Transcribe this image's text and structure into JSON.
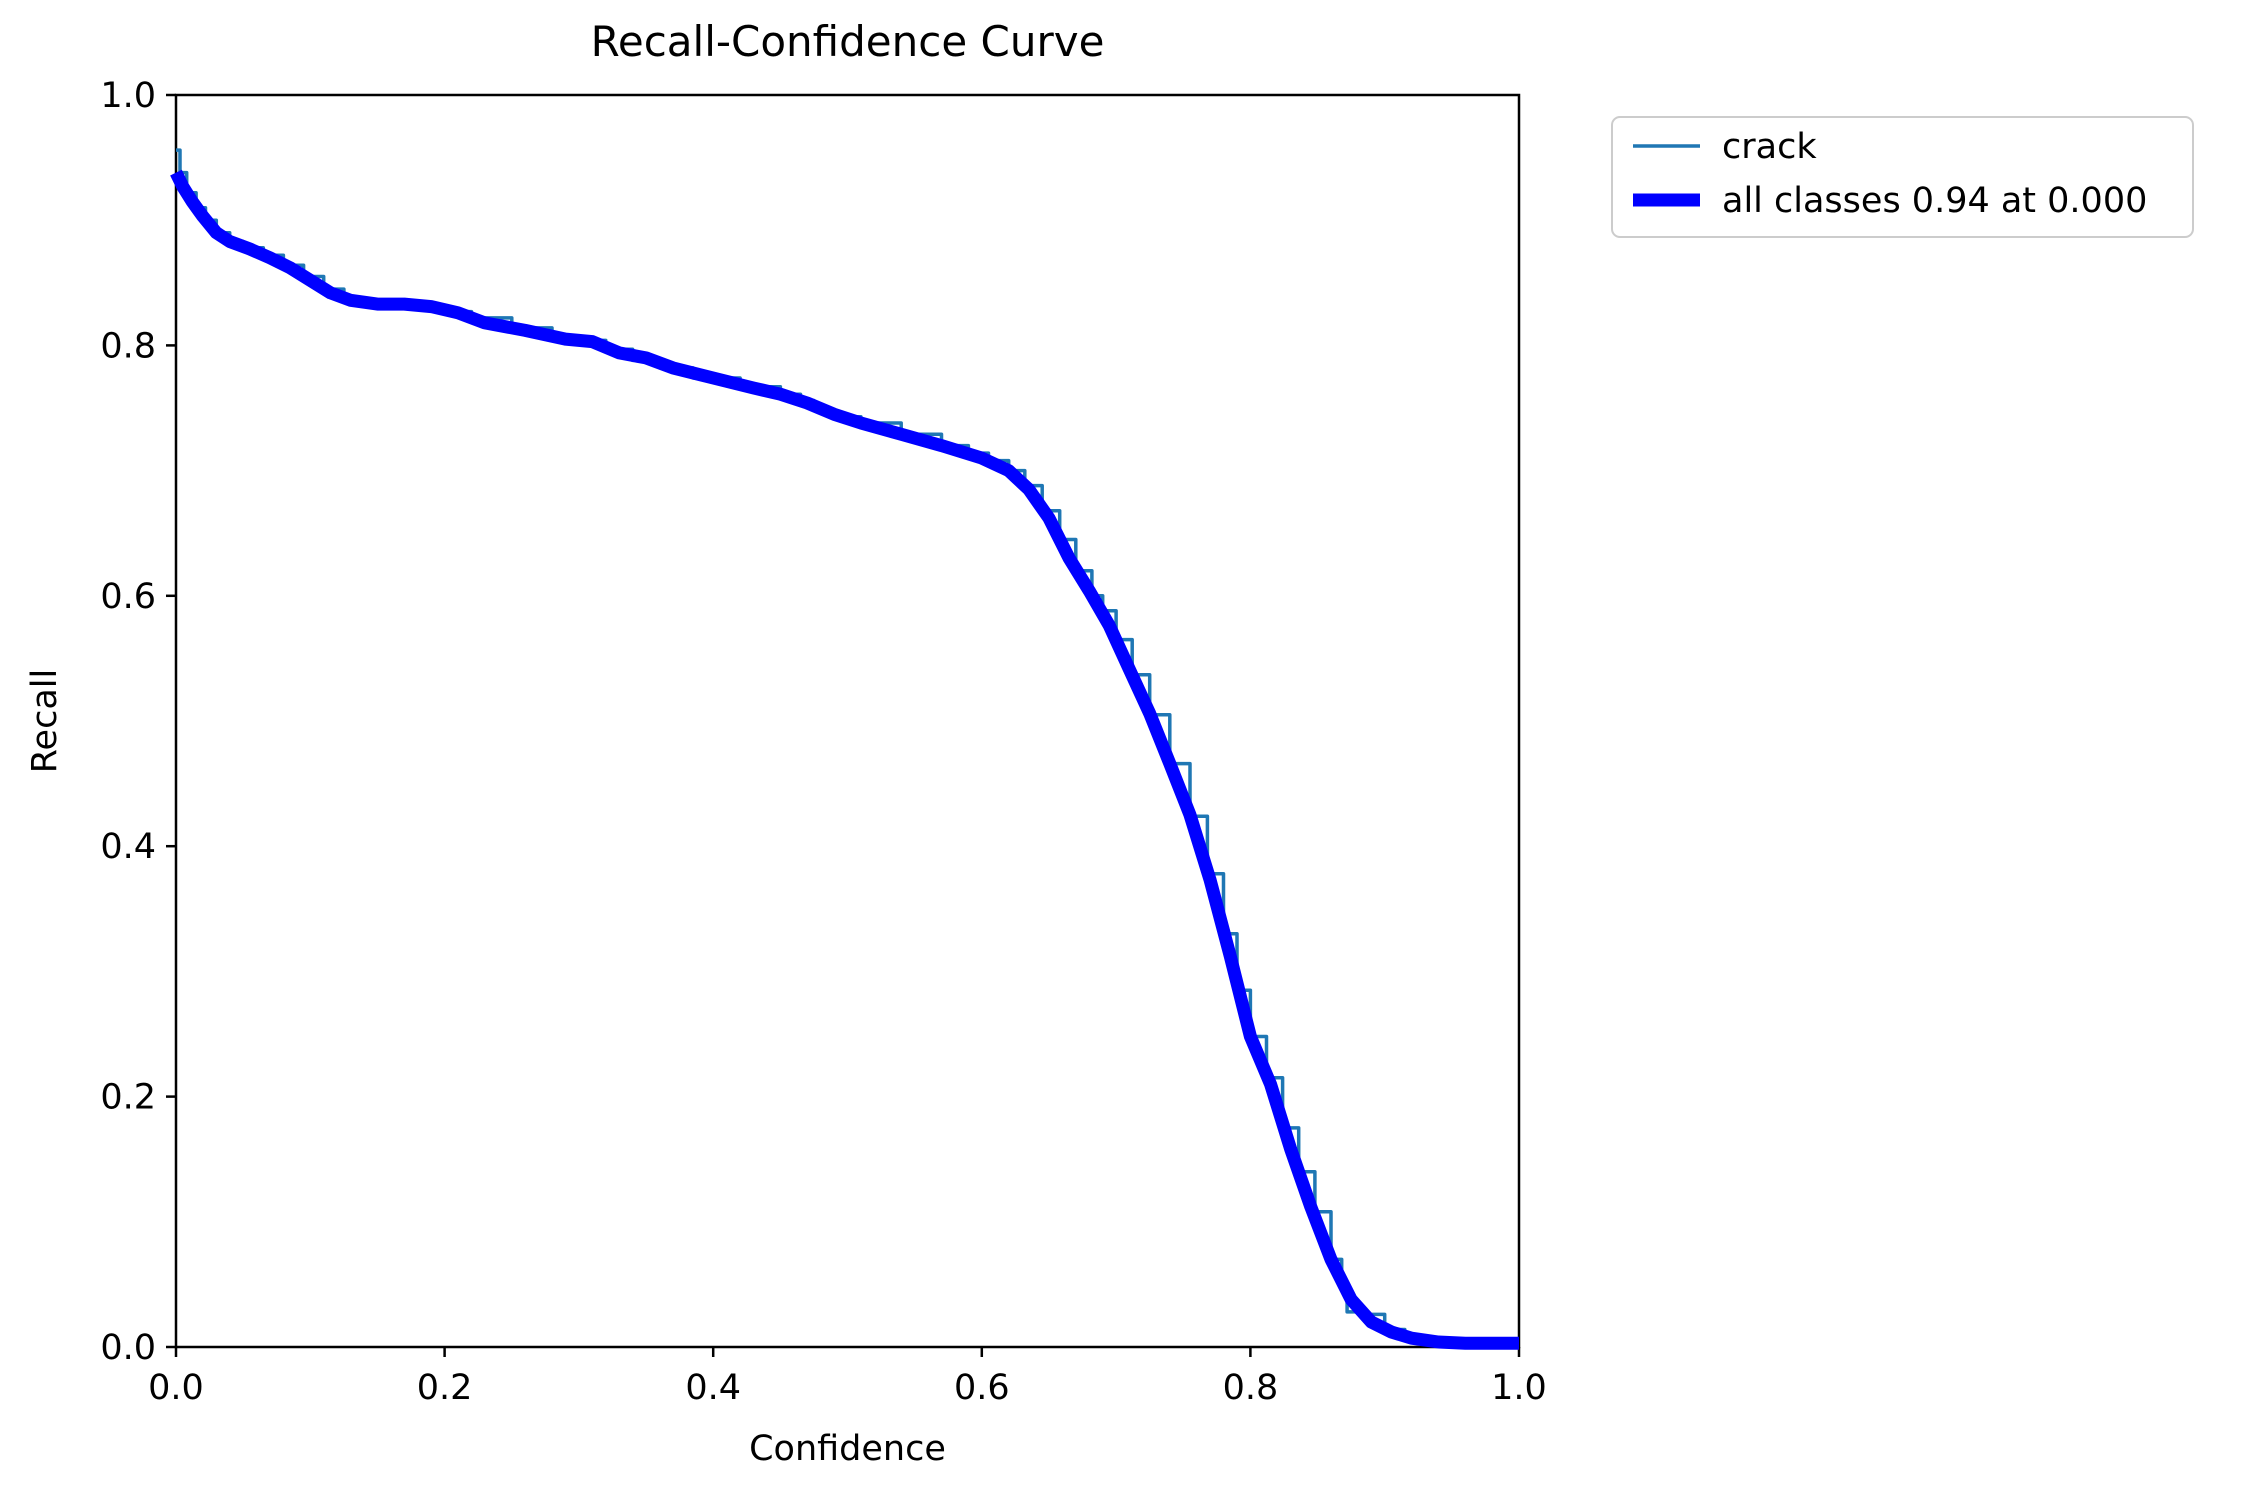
{
  "chart_data": {
    "type": "line",
    "title": "Recall-Confidence Curve",
    "xlabel": "Confidence",
    "ylabel": "Recall",
    "xlim": [
      0.0,
      1.0
    ],
    "ylim": [
      0.0,
      1.0
    ],
    "xticks": [
      "0.0",
      "0.2",
      "0.4",
      "0.6",
      "0.8",
      "1.0"
    ],
    "yticks": [
      "0.0",
      "0.2",
      "0.4",
      "0.6",
      "0.8",
      "1.0"
    ],
    "grid": false,
    "legend_position": "upper-right-outside",
    "series": [
      {
        "name": "crack",
        "color": "#1f77b4",
        "linewidth": 3.5,
        "style": "steps",
        "points": [
          [
            0.0,
            0.956
          ],
          [
            0.003,
            0.938
          ],
          [
            0.008,
            0.922
          ],
          [
            0.015,
            0.91
          ],
          [
            0.022,
            0.9
          ],
          [
            0.03,
            0.89
          ],
          [
            0.04,
            0.883
          ],
          [
            0.05,
            0.878
          ],
          [
            0.065,
            0.872
          ],
          [
            0.08,
            0.864
          ],
          [
            0.095,
            0.855
          ],
          [
            0.11,
            0.845
          ],
          [
            0.125,
            0.838
          ],
          [
            0.14,
            0.834
          ],
          [
            0.16,
            0.833
          ],
          [
            0.18,
            0.832
          ],
          [
            0.2,
            0.827
          ],
          [
            0.22,
            0.822
          ],
          [
            0.25,
            0.814
          ],
          [
            0.28,
            0.807
          ],
          [
            0.3,
            0.804
          ],
          [
            0.32,
            0.797
          ],
          [
            0.34,
            0.788
          ],
          [
            0.36,
            0.782
          ],
          [
            0.385,
            0.774
          ],
          [
            0.42,
            0.767
          ],
          [
            0.45,
            0.761
          ],
          [
            0.465,
            0.756
          ],
          [
            0.475,
            0.748
          ],
          [
            0.49,
            0.743
          ],
          [
            0.51,
            0.738
          ],
          [
            0.54,
            0.729
          ],
          [
            0.57,
            0.72
          ],
          [
            0.59,
            0.714
          ],
          [
            0.605,
            0.708
          ],
          [
            0.62,
            0.7
          ],
          [
            0.632,
            0.688
          ],
          [
            0.645,
            0.668
          ],
          [
            0.658,
            0.645
          ],
          [
            0.67,
            0.62
          ],
          [
            0.682,
            0.6
          ],
          [
            0.69,
            0.588
          ],
          [
            0.7,
            0.565
          ],
          [
            0.712,
            0.537
          ],
          [
            0.725,
            0.505
          ],
          [
            0.74,
            0.466
          ],
          [
            0.755,
            0.424
          ],
          [
            0.768,
            0.378
          ],
          [
            0.78,
            0.33
          ],
          [
            0.79,
            0.285
          ],
          [
            0.8,
            0.248
          ],
          [
            0.812,
            0.215
          ],
          [
            0.824,
            0.175
          ],
          [
            0.836,
            0.14
          ],
          [
            0.848,
            0.108
          ],
          [
            0.86,
            0.07
          ],
          [
            0.868,
            0.052
          ],
          [
            0.872,
            0.028
          ],
          [
            0.886,
            0.026
          ],
          [
            0.9,
            0.014
          ],
          [
            0.915,
            0.009
          ],
          [
            0.93,
            0.005
          ],
          [
            0.95,
            0.003
          ],
          [
            1.0,
            0.003
          ]
        ]
      },
      {
        "name": "all classes 0.94 at 0.000",
        "color": "#0000ff",
        "linewidth": 13,
        "style": "smooth",
        "points": [
          [
            0.0,
            0.938
          ],
          [
            0.005,
            0.927
          ],
          [
            0.012,
            0.915
          ],
          [
            0.02,
            0.903
          ],
          [
            0.03,
            0.89
          ],
          [
            0.04,
            0.883
          ],
          [
            0.055,
            0.877
          ],
          [
            0.07,
            0.87
          ],
          [
            0.085,
            0.862
          ],
          [
            0.1,
            0.852
          ],
          [
            0.115,
            0.842
          ],
          [
            0.13,
            0.836
          ],
          [
            0.15,
            0.833
          ],
          [
            0.17,
            0.833
          ],
          [
            0.19,
            0.831
          ],
          [
            0.21,
            0.826
          ],
          [
            0.23,
            0.818
          ],
          [
            0.26,
            0.812
          ],
          [
            0.29,
            0.805
          ],
          [
            0.31,
            0.803
          ],
          [
            0.33,
            0.794
          ],
          [
            0.35,
            0.79
          ],
          [
            0.37,
            0.782
          ],
          [
            0.4,
            0.774
          ],
          [
            0.43,
            0.766
          ],
          [
            0.45,
            0.761
          ],
          [
            0.47,
            0.754
          ],
          [
            0.49,
            0.745
          ],
          [
            0.51,
            0.738
          ],
          [
            0.54,
            0.729
          ],
          [
            0.57,
            0.72
          ],
          [
            0.6,
            0.71
          ],
          [
            0.62,
            0.7
          ],
          [
            0.635,
            0.685
          ],
          [
            0.65,
            0.662
          ],
          [
            0.665,
            0.63
          ],
          [
            0.68,
            0.604
          ],
          [
            0.695,
            0.576
          ],
          [
            0.71,
            0.541
          ],
          [
            0.725,
            0.506
          ],
          [
            0.74,
            0.466
          ],
          [
            0.755,
            0.425
          ],
          [
            0.77,
            0.373
          ],
          [
            0.785,
            0.312
          ],
          [
            0.8,
            0.248
          ],
          [
            0.815,
            0.21
          ],
          [
            0.83,
            0.158
          ],
          [
            0.845,
            0.112
          ],
          [
            0.86,
            0.07
          ],
          [
            0.875,
            0.038
          ],
          [
            0.89,
            0.02
          ],
          [
            0.905,
            0.012
          ],
          [
            0.92,
            0.007
          ],
          [
            0.94,
            0.004
          ],
          [
            0.96,
            0.003
          ],
          [
            1.0,
            0.003
          ]
        ]
      }
    ]
  },
  "legend": {
    "entries": [
      {
        "label": "crack"
      },
      {
        "label": "all classes 0.94 at 0.000"
      }
    ]
  },
  "colors": {
    "background": "#ffffff",
    "axis": "#000000",
    "legend_border": "#cccccc",
    "class_line": "#1f77b4",
    "all_classes_line": "#0000ff"
  }
}
